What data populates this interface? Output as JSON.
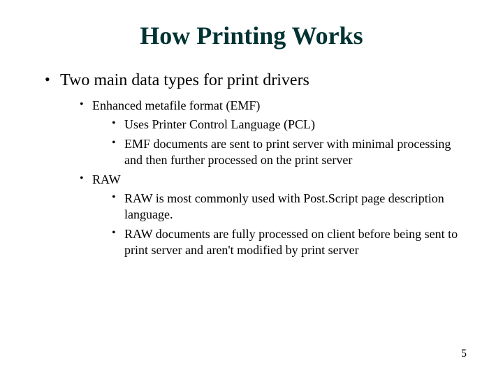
{
  "title": "How Printing Works",
  "title_color": "#003333",
  "background_color": "#ffffff",
  "text_color": "#000000",
  "font_family": "Times New Roman",
  "bullets": {
    "l1_0": "Two main data types for print drivers",
    "l2_0": "Enhanced metafile format (EMF)",
    "l3_0": "Uses Printer Control Language (PCL)",
    "l3_1": "EMF documents are sent to print server with minimal processing and then further processed on the print server",
    "l2_1": "RAW",
    "l3_2": "RAW is most commonly used with Post.Script page description language.",
    "l3_3": "RAW documents are fully processed on client before being sent to print server and aren't modified by print server"
  },
  "page_number": "5",
  "font_sizes": {
    "title": 36,
    "level1": 24,
    "level2": 18,
    "level3": 18
  }
}
